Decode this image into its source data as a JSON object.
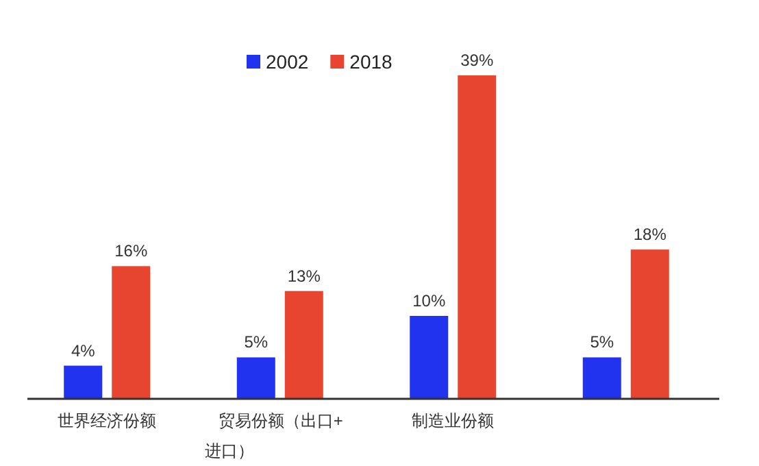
{
  "chart_data": {
    "type": "bar",
    "categories": [
      "世界经济份额",
      "贸易份额（出口+进口）",
      "制造业份额",
      null
    ],
    "series": [
      {
        "name": "2002",
        "color": "#2233f0",
        "values": [
          4,
          5,
          10,
          5
        ],
        "value_labels": [
          "4%",
          "5%",
          "10%",
          "5%"
        ]
      },
      {
        "name": "2018",
        "color": "#e84530",
        "values": [
          16,
          13,
          39,
          18
        ],
        "value_labels": [
          "16%",
          "13%",
          "39%",
          "18%"
        ]
      }
    ],
    "legend": "top",
    "grid": false
  }
}
